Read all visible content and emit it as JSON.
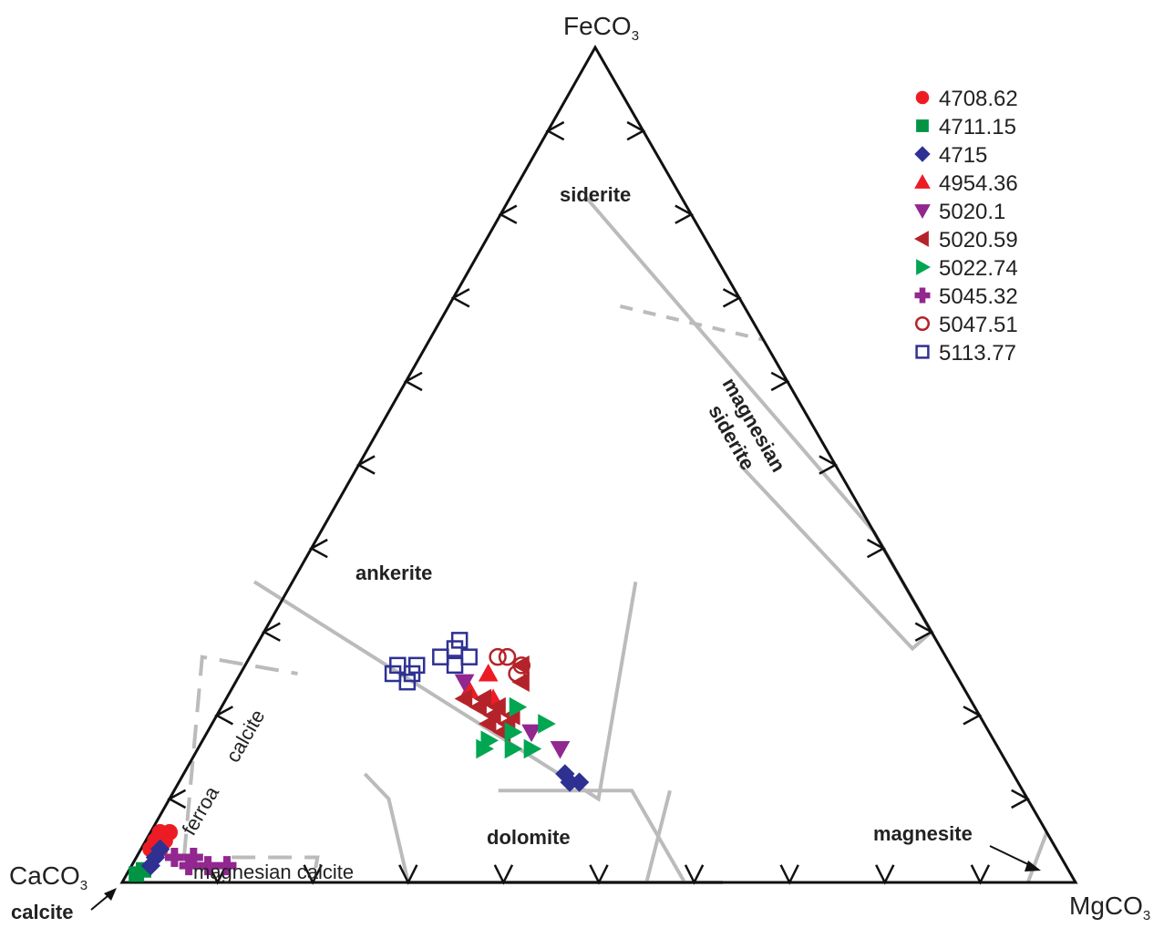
{
  "chart_data": {
    "type": "ternary-scatter",
    "vertices": {
      "top": {
        "main": "FeCO",
        "sub": "3"
      },
      "left": {
        "main": "CaCO",
        "sub": "3"
      },
      "right": {
        "main": "MgCO",
        "sub": "3"
      }
    },
    "fields": {
      "siderite": "siderite",
      "magnesian_siderite_1": "magnesian",
      "magnesian_siderite_2": "siderite",
      "ankerite": "ankerite",
      "dolomite": "dolomite",
      "magnesite": "magnesite",
      "calcite": "calcite",
      "ferroan_1": "ferroa",
      "ferroan_2": "calcite",
      "magnesian_calcite": "magnesian calcite"
    },
    "colors": {
      "axis": "#111111",
      "field_boundary": "#bbbbbb"
    },
    "series": [
      {
        "name": "4708.62",
        "marker": "circle",
        "color": "#ed1c24",
        "filled": true,
        "points": [
          [
            0.94,
            0.05,
            0.01
          ],
          [
            0.93,
            0.06,
            0.01
          ],
          [
            0.95,
            0.04,
            0.01
          ],
          [
            0.92,
            0.06,
            0.02
          ],
          [
            0.94,
            0.04,
            0.02
          ],
          [
            0.93,
            0.05,
            0.02
          ]
        ]
      },
      {
        "name": "4711.15",
        "marker": "square",
        "color": "#009444",
        "filled": true,
        "points": [
          [
            0.98,
            0.01,
            0.01
          ],
          [
            0.97,
            0.015,
            0.015
          ]
        ]
      },
      {
        "name": "4715",
        "marker": "diamond",
        "color": "#2e3192",
        "filled": true,
        "points": [
          [
            0.95,
            0.03,
            0.02
          ],
          [
            0.96,
            0.02,
            0.02
          ],
          [
            0.94,
            0.04,
            0.02
          ],
          [
            0.47,
            0.12,
            0.41
          ],
          [
            0.46,
            0.12,
            0.42
          ],
          [
            0.47,
            0.13,
            0.4
          ]
        ]
      },
      {
        "name": "4954.36",
        "marker": "triangle-up",
        "color": "#ed1c24",
        "filled": true,
        "points": [
          [
            0.52,
            0.23,
            0.25
          ],
          [
            0.5,
            0.22,
            0.28
          ],
          [
            0.49,
            0.25,
            0.26
          ]
        ]
      },
      {
        "name": "5020.1",
        "marker": "triangle-down",
        "color": "#92278f",
        "filled": true,
        "points": [
          [
            0.52,
            0.24,
            0.24
          ],
          [
            0.46,
            0.16,
            0.38
          ],
          [
            0.48,
            0.18,
            0.34
          ]
        ]
      },
      {
        "name": "5020.59",
        "marker": "triangle-left",
        "color": "#b5232a",
        "filled": true,
        "points": [
          [
            0.51,
            0.2,
            0.29
          ],
          [
            0.5,
            0.21,
            0.29
          ],
          [
            0.52,
            0.19,
            0.29
          ],
          [
            0.49,
            0.2,
            0.31
          ],
          [
            0.51,
            0.22,
            0.27
          ],
          [
            0.5,
            0.19,
            0.31
          ],
          [
            0.52,
            0.21,
            0.27
          ],
          [
            0.46,
            0.24,
            0.3
          ],
          [
            0.45,
            0.26,
            0.29
          ],
          [
            0.53,
            0.22,
            0.25
          ],
          [
            0.51,
            0.18,
            0.31
          ]
        ]
      },
      {
        "name": "5022.74",
        "marker": "triangle-right",
        "color": "#00a651",
        "filled": true,
        "points": [
          [
            0.54,
            0.16,
            0.3
          ],
          [
            0.53,
            0.17,
            0.3
          ],
          [
            0.51,
            0.16,
            0.33
          ],
          [
            0.49,
            0.16,
            0.35
          ],
          [
            0.5,
            0.18,
            0.32
          ],
          [
            0.46,
            0.19,
            0.35
          ],
          [
            0.48,
            0.21,
            0.31
          ]
        ]
      },
      {
        "name": "5045.32",
        "marker": "plus",
        "color": "#92278f",
        "filled": true,
        "points": [
          [
            0.92,
            0.02,
            0.06
          ],
          [
            0.9,
            0.02,
            0.08
          ],
          [
            0.88,
            0.02,
            0.1
          ],
          [
            0.93,
            0.03,
            0.04
          ],
          [
            0.91,
            0.03,
            0.06
          ]
        ]
      },
      {
        "name": "5047.51",
        "marker": "circle",
        "color": "#b5232a",
        "filled": false,
        "points": [
          [
            0.46,
            0.27,
            0.27
          ],
          [
            0.45,
            0.26,
            0.29
          ],
          [
            0.47,
            0.27,
            0.26
          ],
          [
            0.46,
            0.25,
            0.29
          ]
        ]
      },
      {
        "name": "5113.77",
        "marker": "square",
        "color": "#2e3192",
        "filled": false,
        "points": [
          [
            0.58,
            0.26,
            0.16
          ],
          [
            0.58,
            0.24,
            0.18
          ],
          [
            0.57,
            0.25,
            0.18
          ],
          [
            0.56,
            0.26,
            0.18
          ],
          [
            0.59,
            0.25,
            0.16
          ],
          [
            0.52,
            0.26,
            0.22
          ],
          [
            0.51,
            0.28,
            0.21
          ],
          [
            0.5,
            0.29,
            0.21
          ],
          [
            0.5,
            0.27,
            0.23
          ],
          [
            0.53,
            0.27,
            0.2
          ]
        ]
      }
    ]
  }
}
